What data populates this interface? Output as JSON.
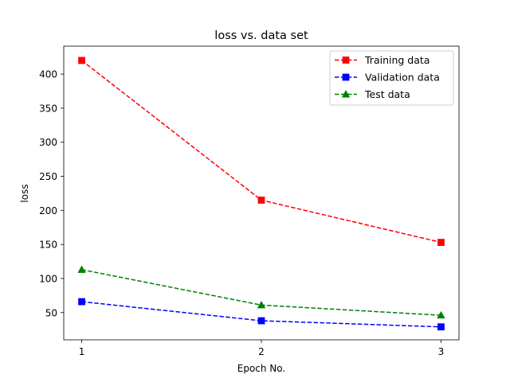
{
  "chart_data": {
    "type": "line",
    "title": "loss vs. data set",
    "xlabel": "Epoch No.",
    "ylabel": "loss",
    "x": [
      1,
      2,
      3
    ],
    "xticks": [
      1,
      2,
      3
    ],
    "yticks": [
      50,
      100,
      150,
      200,
      250,
      300,
      350,
      400
    ],
    "xlim": [
      0.9,
      3.1
    ],
    "ylim": [
      10,
      441
    ],
    "grid": false,
    "legend_position": "top-right",
    "series": [
      {
        "name": "Training data",
        "values": [
          420,
          215,
          153
        ],
        "color": "#ff0000",
        "marker": "square",
        "linestyle": "dashed"
      },
      {
        "name": "Validation data",
        "values": [
          66,
          38,
          29
        ],
        "color": "#0000ff",
        "marker": "square",
        "linestyle": "dashed"
      },
      {
        "name": "Test data",
        "values": [
          113,
          61,
          46
        ],
        "color": "#008000",
        "marker": "triangle",
        "linestyle": "dashed"
      }
    ]
  }
}
